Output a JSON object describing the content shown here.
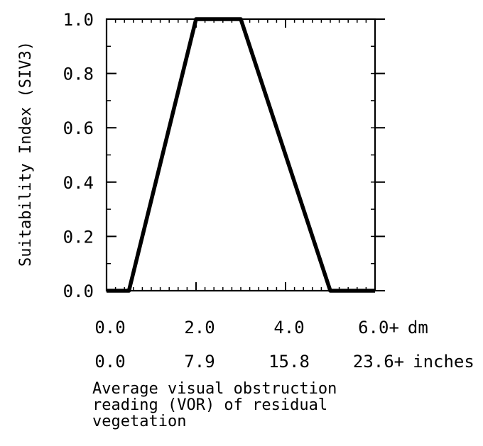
{
  "chart_data": {
    "type": "line",
    "title": "",
    "ylabel": "Suitability Index (SIV3)",
    "xlabel_lines": [
      "Average visual obstruction",
      "reading (VOR) of residual",
      "vegetation"
    ],
    "xlim": [
      0,
      6
    ],
    "ylim": [
      0,
      1
    ],
    "grid": false,
    "series": [
      {
        "x": [
          0.0,
          0.5,
          2.0,
          3.0,
          5.0,
          6.0
        ],
        "y": [
          0.0,
          0.0,
          1.0,
          1.0,
          0.0,
          0.0
        ]
      }
    ],
    "y_ticks": [
      {
        "value": 0.0,
        "label": "0.0"
      },
      {
        "value": 0.2,
        "label": "0.2"
      },
      {
        "value": 0.4,
        "label": "0.4"
      },
      {
        "value": 0.6,
        "label": "0.6"
      },
      {
        "value": 0.8,
        "label": "0.8"
      },
      {
        "value": 1.0,
        "label": "1.0"
      }
    ],
    "x_tick_rows": [
      {
        "unit": "dm",
        "ticks": [
          {
            "value": 0,
            "label": "0.0"
          },
          {
            "value": 2,
            "label": "2.0"
          },
          {
            "value": 4,
            "label": "4.0"
          },
          {
            "value": 6,
            "label": "6.0+"
          }
        ]
      },
      {
        "unit": "inches",
        "ticks": [
          {
            "value": 0,
            "label": "0.0"
          },
          {
            "value": 2,
            "label": "7.9"
          },
          {
            "value": 4,
            "label": "15.8"
          },
          {
            "value": 6,
            "label": "23.6+"
          }
        ]
      }
    ]
  }
}
